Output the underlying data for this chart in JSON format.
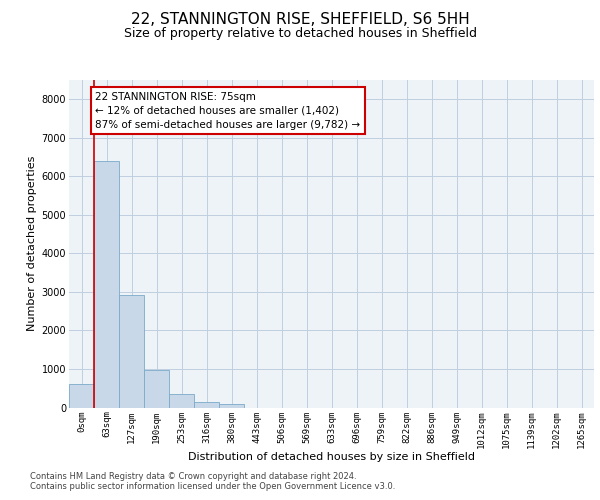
{
  "title1": "22, STANNINGTON RISE, SHEFFIELD, S6 5HH",
  "title2": "Size of property relative to detached houses in Sheffield",
  "xlabel": "Distribution of detached houses by size in Sheffield",
  "ylabel": "Number of detached properties",
  "bar_labels": [
    "0sqm",
    "63sqm",
    "127sqm",
    "190sqm",
    "253sqm",
    "316sqm",
    "380sqm",
    "443sqm",
    "506sqm",
    "569sqm",
    "633sqm",
    "696sqm",
    "759sqm",
    "822sqm",
    "886sqm",
    "949sqm",
    "1012sqm",
    "1075sqm",
    "1139sqm",
    "1202sqm",
    "1265sqm"
  ],
  "bar_values": [
    600,
    6400,
    2920,
    970,
    360,
    150,
    80,
    0,
    0,
    0,
    0,
    0,
    0,
    0,
    0,
    0,
    0,
    0,
    0,
    0,
    0
  ],
  "bar_color": "#c8d8e8",
  "bar_edgecolor": "#7aaac8",
  "annotation_text": "22 STANNINGTON RISE: 75sqm\n← 12% of detached houses are smaller (1,402)\n87% of semi-detached houses are larger (9,782) →",
  "vline_color": "#cc0000",
  "vline_x": 0.5,
  "ylim": [
    0,
    8500
  ],
  "yticks": [
    0,
    1000,
    2000,
    3000,
    4000,
    5000,
    6000,
    7000,
    8000
  ],
  "grid_color": "#c0cfe0",
  "bg_color": "#eef3f8",
  "footer1": "Contains HM Land Registry data © Crown copyright and database right 2024.",
  "footer2": "Contains public sector information licensed under the Open Government Licence v3.0.",
  "title1_fontsize": 11,
  "title2_fontsize": 9,
  "axis_label_fontsize": 8,
  "tick_fontsize": 6.5,
  "annotation_fontsize": 7.5,
  "footer_fontsize": 6
}
